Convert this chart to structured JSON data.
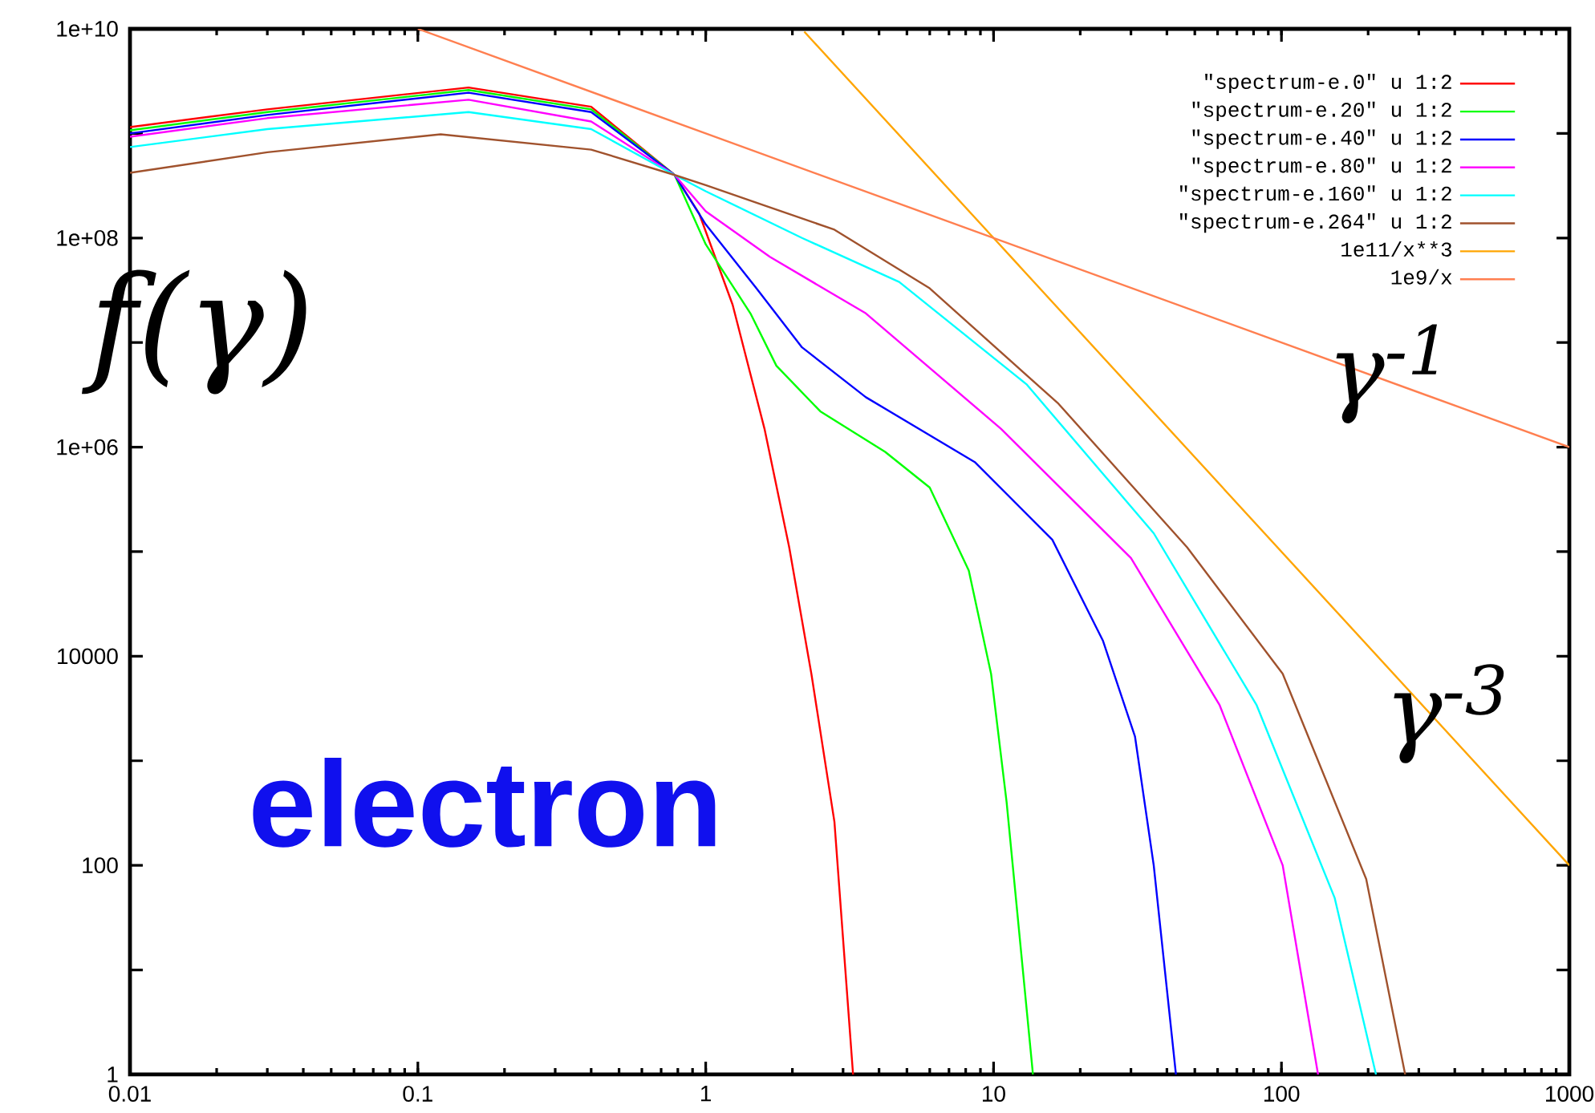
{
  "chart_data": {
    "type": "line",
    "ylabel": "f(γ)",
    "log": "xy",
    "legend": "top right",
    "xlim": [
      0.01,
      1000
    ],
    "ylim": [
      1,
      10000000000
    ],
    "xticks": [
      0.01,
      0.1,
      1,
      10,
      100,
      1000
    ],
    "yticks": [
      1,
      {
        "value": 10,
        "label": null
      },
      100,
      {
        "value": 1000,
        "label": null
      },
      10000,
      {
        "value": 100000,
        "label": null
      },
      {
        "value": 1000000,
        "label": "1e+06"
      },
      {
        "value": 10000000,
        "label": null
      },
      {
        "value": 100000000,
        "label": "1e+08"
      },
      {
        "value": 1000000000,
        "label": null
      },
      {
        "value": 10000000000,
        "label": "1e+10"
      }
    ],
    "annotations": [
      "γ$^{-1}$",
      "γ$^{-3}$",
      "electron"
    ],
    "series": [
      {
        "name": "\"spectrum-e.0\" u 1:2",
        "color": "#ff0000",
        "x": [
          0.01,
          0.03,
          0.15,
          0.4,
          0.78,
          0.95,
          1.24,
          1.6,
          1.95,
          2.33,
          2.8,
          3.25
        ],
        "values": [
          1150000000,
          1700000000,
          2750000000,
          1800000000,
          400000000,
          170000000,
          23000000,
          1500000,
          110000,
          6700,
          260,
          1
        ]
      },
      {
        "name": "\"spectrum-e.20\" u 1:2",
        "color": "#00ff00",
        "x": [
          0.01,
          0.03,
          0.15,
          0.4,
          0.78,
          1.0,
          1.43,
          1.76,
          2.5,
          4.2,
          6.0,
          8.2,
          9.8,
          11.1,
          13.7
        ],
        "values": [
          1070000000,
          1600000000,
          2600000000,
          1700000000,
          400000000,
          87000000,
          19000000,
          6000000,
          2200000,
          900000,
          410000,
          66000,
          6800,
          400,
          1
        ]
      },
      {
        "name": "\"spectrum-e.40\" u 1:2",
        "color": "#0000ff",
        "x": [
          0.01,
          0.03,
          0.15,
          0.4,
          0.78,
          1.0,
          1.5,
          2.16,
          3.6,
          8.6,
          16,
          24,
          31,
          36,
          43
        ],
        "values": [
          1000000000,
          1500000000,
          2450000000,
          1600000000,
          400000000,
          135000000,
          33000000,
          9000000,
          3000000,
          720000,
          130000,
          14000,
          1700,
          100,
          1
        ]
      },
      {
        "name": "\"spectrum-e.80\" u 1:2",
        "color": "#ff00ff",
        "x": [
          0.01,
          0.03,
          0.15,
          0.4,
          0.78,
          1.0,
          1.67,
          3.6,
          10.6,
          30,
          61,
          101,
          134
        ],
        "values": [
          930000000,
          1400000000,
          2100000000,
          1300000000,
          400000000,
          180000000,
          66000000,
          19000000,
          1500000,
          87000,
          3400,
          100,
          1
        ]
      },
      {
        "name": "\"spectrum-e.160\" u 1:2",
        "color": "#00ffff",
        "x": [
          0.01,
          0.03,
          0.15,
          0.4,
          0.78,
          1.0,
          2.16,
          4.7,
          13,
          36,
          82,
          153,
          213
        ],
        "values": [
          740000000,
          1100000000,
          1600000000,
          1100000000,
          400000000,
          280000000,
          100000000,
          38000000,
          4000000,
          150000,
          3400,
          49,
          1
        ]
      },
      {
        "name": "\"spectrum-e.264\" u 1:2",
        "color": "#a0522d",
        "x": [
          0.01,
          0.03,
          0.12,
          0.4,
          0.78,
          1.0,
          2.8,
          6.0,
          16.8,
          47,
          101,
          197,
          269
        ],
        "values": [
          420000000,
          660000000,
          980000000,
          700000000,
          400000000,
          320000000,
          120000000,
          33000000,
          2600000,
          110000,
          6800,
          74,
          1
        ]
      },
      {
        "name": "1e11/x**3",
        "color": "#ffa500",
        "x": [
          2.2,
          10,
          1000
        ],
        "values": [
          9390000000,
          100000000,
          100
        ]
      },
      {
        "name": "1e9/x",
        "color": "#ff7f50",
        "x": [
          0.1,
          1,
          1000
        ],
        "values": [
          10000000000,
          1000000000,
          1000000
        ]
      }
    ]
  }
}
